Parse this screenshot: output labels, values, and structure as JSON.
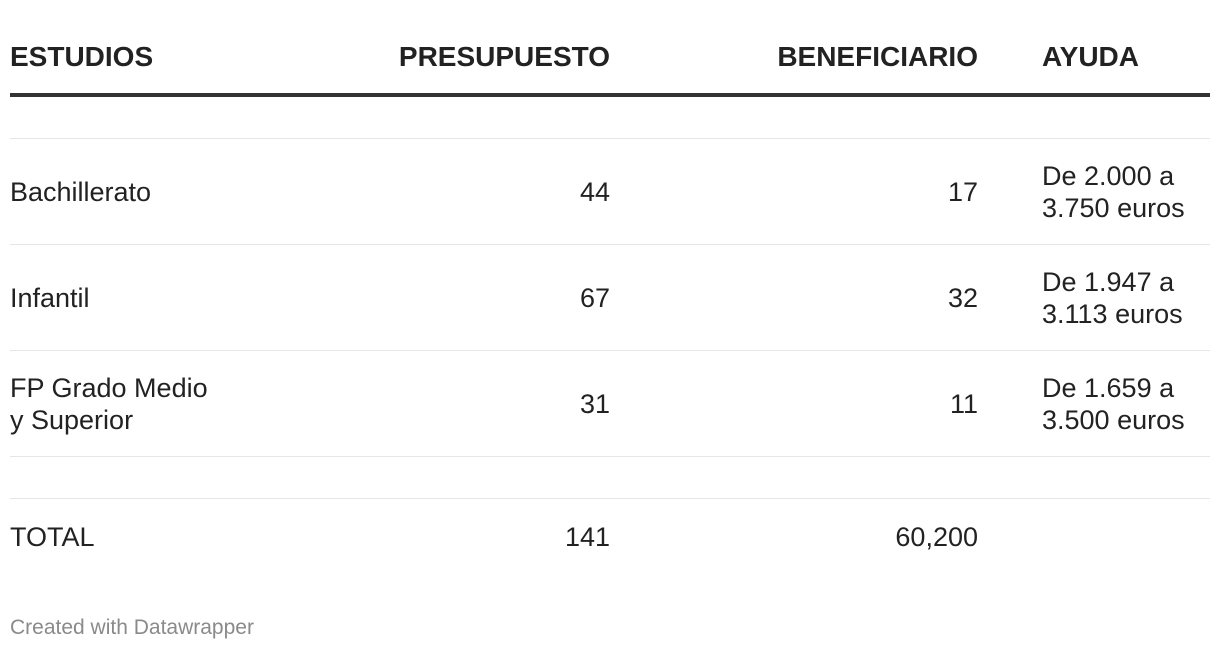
{
  "chart_data": {
    "type": "table",
    "columns": [
      "ESTUDIOS",
      "PRESUPUESTO",
      "BENEFICIARIO",
      "AYUDA"
    ],
    "rows": [
      {
        "estudios": "Bachillerato",
        "presupuesto": "44",
        "beneficiario": "17",
        "ayuda": "De 2.000 a\n3.750 euros"
      },
      {
        "estudios": "Infantil",
        "presupuesto": "67",
        "beneficiario": "32",
        "ayuda": "De 1.947 a\n3.113 euros"
      },
      {
        "estudios": "FP Grado Medio\ny Superior",
        "presupuesto": "31",
        "beneficiario": "11",
        "ayuda": "De 1.659 a\n3.500 euros"
      }
    ],
    "total": {
      "label": "TOTAL",
      "presupuesto": "141",
      "beneficiario": "60,200",
      "ayuda": ""
    }
  },
  "footer": {
    "credit": "Created with Datawrapper"
  }
}
